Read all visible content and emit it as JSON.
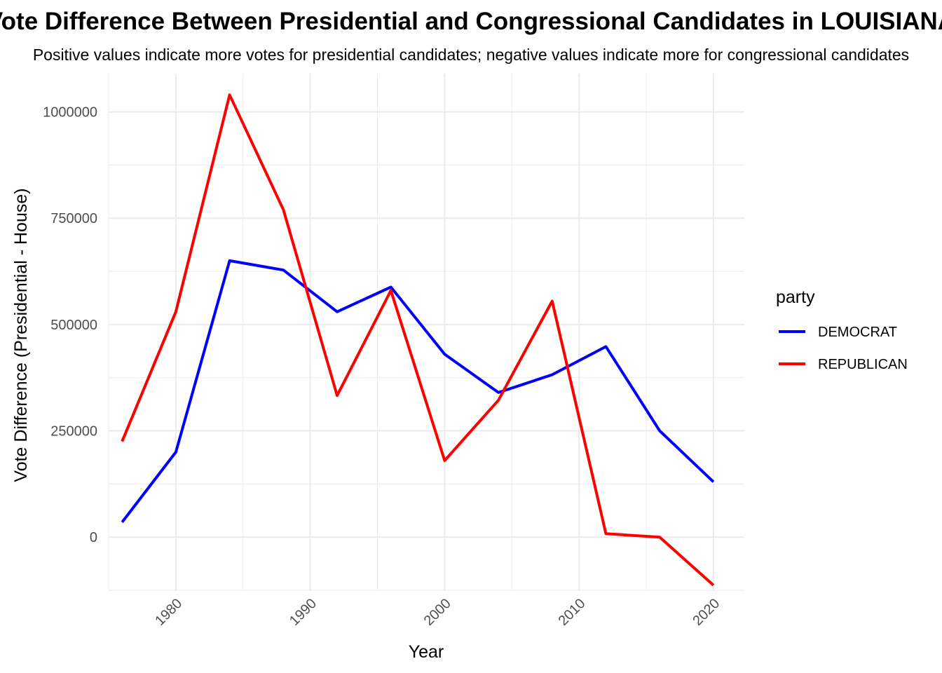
{
  "chart_data": {
    "type": "line",
    "title": "Vote Difference Between Presidential and Congressional Candidates in LOUISIANA",
    "subtitle": "Positive values indicate more votes for presidential candidates; negative values indicate more for congressional candidates",
    "xlabel": "Year",
    "ylabel": "Vote Difference (Presidential - House)",
    "x": [
      1976,
      1980,
      1984,
      1988,
      1992,
      1996,
      2000,
      2004,
      2008,
      2012,
      2016,
      2020
    ],
    "xlim": [
      1975,
      2022.3
    ],
    "ylim": [
      -125000,
      1090000
    ],
    "x_ticks_major": [
      1980,
      1990,
      2000,
      2010,
      2020
    ],
    "x_ticks_minor": [
      1975,
      1985,
      1995,
      2005,
      2015
    ],
    "y_ticks_major": [
      0,
      250000,
      500000,
      750000,
      1000000
    ],
    "y_ticks_minor": [
      -125000,
      125000,
      375000,
      625000,
      875000
    ],
    "x_tick_labels": [
      "1980",
      "1990",
      "2000",
      "2010",
      "2020"
    ],
    "y_tick_labels": [
      "0",
      "250000",
      "500000",
      "750000",
      "1000000"
    ],
    "grid": true,
    "legend": {
      "title": "party",
      "placement": "right"
    },
    "series": [
      {
        "name": "DEMOCRAT",
        "color": "#0000FF",
        "values": [
          35000,
          200000,
          650000,
          628000,
          530000,
          588000,
          430000,
          340000,
          382000,
          448000,
          250000,
          130000
        ]
      },
      {
        "name": "REPUBLICAN",
        "color": "#FF0000",
        "values": [
          225000,
          530000,
          1040000,
          770000,
          333000,
          580000,
          180000,
          322000,
          555000,
          8000,
          0,
          -113000
        ]
      }
    ]
  }
}
